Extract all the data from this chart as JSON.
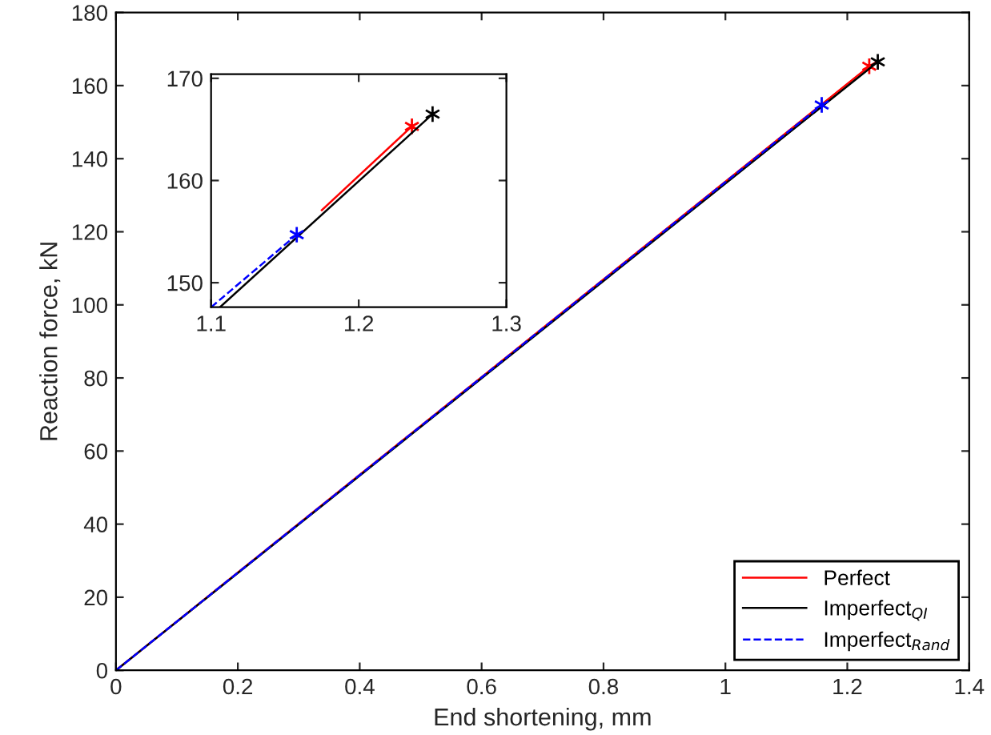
{
  "chart_data": [
    {
      "type": "line",
      "xlabel": "End shortening, mm",
      "ylabel": "Reaction force, kN",
      "xlim": [
        0,
        1.4
      ],
      "ylim": [
        0,
        180
      ],
      "xticks": [
        0,
        0.2,
        0.4,
        0.6,
        0.8,
        1,
        1.2,
        1.4
      ],
      "yticks": [
        0,
        20,
        40,
        60,
        80,
        100,
        120,
        140,
        160,
        180
      ],
      "grid": false,
      "legend": "bottom right",
      "marker": "cross",
      "series": [
        {
          "name": "Perfect",
          "color": "#ff0000",
          "line_style": "solid",
          "x": [
            0,
            1.236
          ],
          "values": [
            0,
            165.3
          ]
        },
        {
          "name": "Imperfect$_{QI}$",
          "color": "#000000",
          "line_style": "solid",
          "x": [
            0,
            1.25
          ],
          "values": [
            0,
            166.5
          ]
        },
        {
          "name": "Imperfect$_{Rand}$",
          "color": "#0000ff",
          "line_style": "dashed",
          "x": [
            0,
            1.158
          ],
          "values": [
            0,
            154.7
          ]
        }
      ]
    },
    {
      "type": "line",
      "xlim": [
        1.1,
        1.3
      ],
      "ylim": [
        147.6,
        170.4
      ],
      "xticks": [
        1.1,
        1.2,
        1.3
      ],
      "yticks": [
        150,
        160,
        170
      ],
      "grid": false,
      "legend": false,
      "marker": "cross",
      "series": [
        {
          "color": "#ff0000",
          "line_style": "solid",
          "x": [
            1.175,
            1.236
          ],
          "values": [
            157.1,
            165.3
          ]
        },
        {
          "color": "#000000",
          "line_style": "solid",
          "x": [
            1.106,
            1.25
          ],
          "values": [
            147.6,
            166.5
          ]
        },
        {
          "color": "#0000ff",
          "line_style": "dashed",
          "x": [
            1.1,
            1.158
          ],
          "values": [
            147.6,
            154.7
          ]
        }
      ]
    }
  ]
}
